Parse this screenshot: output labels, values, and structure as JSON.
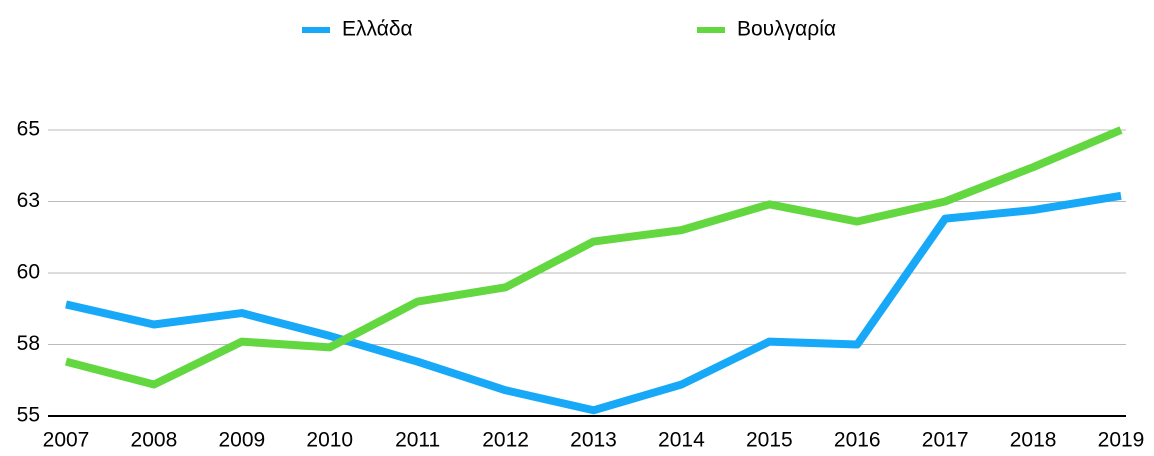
{
  "chart_data": {
    "type": "line",
    "categories": [
      "2007",
      "2008",
      "2009",
      "2010",
      "2011",
      "2012",
      "2013",
      "2014",
      "2015",
      "2016",
      "2017",
      "2018",
      "2019"
    ],
    "series": [
      {
        "name": "Ελλάδα",
        "color": "#17a9f7",
        "values": [
          58.9,
          58.2,
          58.6,
          57.8,
          56.9,
          55.9,
          55.2,
          56.1,
          57.6,
          57.5,
          61.9,
          62.2,
          62.7
        ]
      },
      {
        "name": "Βουλγαρία",
        "color": "#63d73f",
        "values": [
          56.9,
          56.1,
          57.6,
          57.4,
          59.0,
          59.5,
          61.1,
          61.5,
          62.4,
          61.8,
          62.5,
          63.7,
          65.0
        ]
      }
    ],
    "ylim": [
      55,
      65
    ],
    "yticks": [
      55,
      {
        "value": 57.5,
        "label": "58"
      },
      60,
      {
        "value": 62.5,
        "label": "63"
      },
      65
    ],
    "grid": true,
    "legend": "top"
  }
}
